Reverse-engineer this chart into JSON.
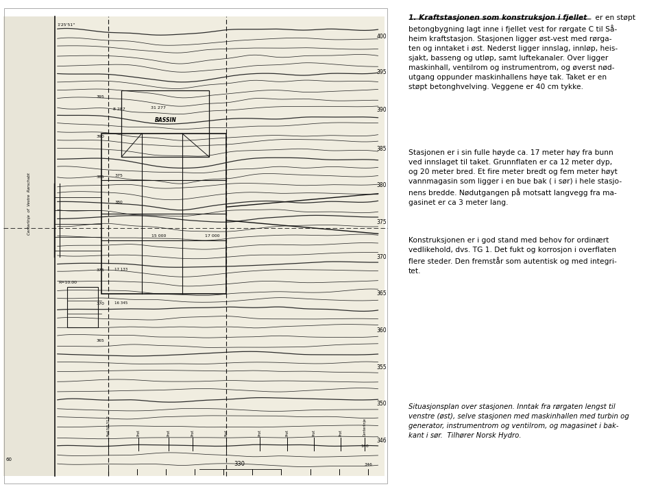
{
  "bg_color": "#ffffff",
  "map_bg": "#d8d4c8",
  "title1_italic": "1. Kraftstasjonen som konstruksjon i fjellet",
  "title1_normal": " er en støpt",
  "para1_lines": [
    "betongbygning lagt inne i fjellet vest for rørgate C til Så-",
    "heim kraftstasjon. Stasjonen ligger øst-vest med rørga-",
    "ten og inntaket i øst. Nederst ligger innslag, innløp, heis-",
    "sjakt, basseng og utløp, samt luftekanaler. Over ligger",
    "maskinhall, ventilrom og instrumentrom, og øverst nød-",
    "utgang oppunder maskinhallens høye tak. Taket er en",
    "støpt betonghvelving. Veggene er 40 cm tykke."
  ],
  "para2_lines": [
    "Stasjonen er i sin fulle høyde ca. 17 meter høy fra bunn",
    "ved innslaget til taket. Grunnflaten er ca 12 meter dyp,",
    "og 20 meter bred. Et fire meter bredt og fem meter høyt",
    "vannmagasin som ligger i en bue bak ( i sør) i hele stasjo-",
    "nens bredde. Nødutgangen på motsatt langvegg fra ma-",
    "gasinet er ca 3 meter lang."
  ],
  "para3_lines": [
    "Konstruksjonen er i god stand med behov for ordinært",
    "vedlikehold, dvs. TG 1. Det fukt og korrosjon i overflaten",
    "flere steder. Den fremstår som autentisk og med integri-",
    "tet."
  ],
  "caption_lines": [
    "Situasjonsplan over stasjonen. Inntak fra rørgaten lengst til",
    "venstre (øst), selve stasjonen med maskinhallen med turbin og",
    "generator, instrumentrom og ventilrom, og magasinet i bak-",
    "kant i sør.  Tilhører Norsk Hydro."
  ],
  "contour_color": "#2a2a2a",
  "struct_color": "#111111"
}
